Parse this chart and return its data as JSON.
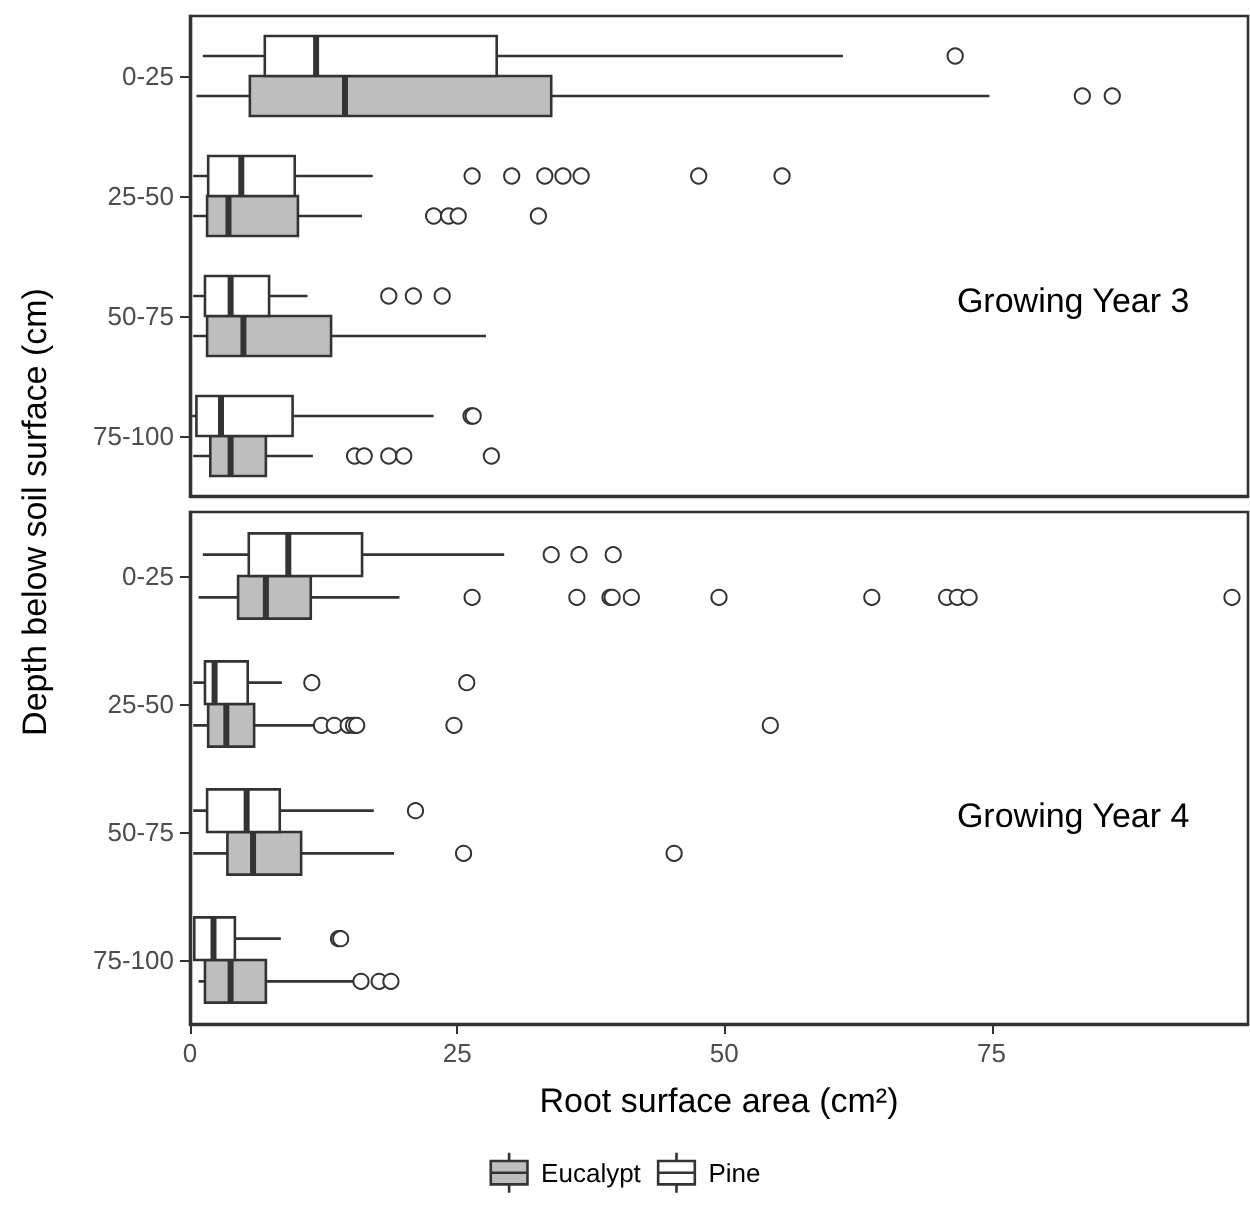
{
  "chart_data": [
    {
      "type": "box",
      "orientation": "horizontal",
      "ylabel": "Depth below soil surface (cm)",
      "annotations": [
        "Growing Year 3"
      ],
      "categories": [
        "0-25",
        "25-50",
        "50-75",
        "75-100"
      ],
      "xlim": [
        0,
        99
      ],
      "xticks": [
        0,
        25,
        50,
        75
      ],
      "tick_labels": "y",
      "series": [
        {
          "color": "#bebebe",
          "boxes": [
            {
              "low": 0.6,
              "q1": 5.6,
              "median": 14.5,
              "q3": 33.8,
              "high": 74.8,
              "outliers": [
                83.5,
                86.3
              ]
            },
            {
              "low": 0.3,
              "q1": 1.6,
              "median": 3.6,
              "q3": 10.1,
              "high": 16.1,
              "outliers": [
                22.8,
                24.2,
                25.1,
                32.6
              ]
            },
            {
              "low": 0.3,
              "q1": 1.6,
              "median": 5.0,
              "q3": 13.2,
              "high": 27.7
            },
            {
              "low": 0.3,
              "q1": 1.9,
              "median": 3.8,
              "q3": 7.1,
              "high": 11.5,
              "outliers": [
                15.4,
                16.3,
                18.6,
                20.0,
                28.2
              ]
            }
          ]
        },
        {
          "color": "#ffffff",
          "boxes": [
            {
              "low": 1.2,
              "q1": 7.0,
              "median": 11.8,
              "q3": 28.7,
              "high": 61.1,
              "outliers": [
                71.6
              ]
            },
            {
              "low": 0.3,
              "q1": 1.7,
              "median": 4.8,
              "q3": 9.8,
              "high": 17.1,
              "outliers": [
                26.4,
                30.1,
                33.2,
                34.9,
                36.6,
                47.6,
                55.4
              ]
            },
            {
              "low": 0.3,
              "q1": 1.4,
              "median": 3.8,
              "q3": 7.4,
              "high": 11.0,
              "outliers": [
                18.6,
                20.9,
                23.6
              ]
            },
            {
              "low": 0.2,
              "q1": 0.6,
              "median": 2.9,
              "q3": 9.6,
              "high": 22.8,
              "outliers": [
                26.3,
                26.5
              ]
            }
          ]
        }
      ]
    },
    {
      "type": "box",
      "orientation": "horizontal",
      "xlabel": "Root surface area (cm²)",
      "annotations": [
        "Growing Year 4"
      ],
      "categories": [
        "0-25",
        "25-50",
        "50-75",
        "75-100"
      ],
      "xlim": [
        0,
        99
      ],
      "xticks": [
        0,
        25,
        50,
        75
      ],
      "legend": "bottom",
      "series": [
        {
          "name": "Eucalypt",
          "color": "#bebebe",
          "boxes": [
            {
              "low": 0.8,
              "q1": 4.5,
              "median": 7.1,
              "q3": 11.3,
              "high": 19.6,
              "outliers": [
                26.4,
                36.2,
                39.3,
                39.5,
                41.3,
                49.5,
                63.8,
                70.8,
                71.8,
                72.9,
                97.5
              ]
            },
            {
              "low": 0.3,
              "q1": 1.7,
              "median": 3.4,
              "q3": 6.0,
              "high": 11.8,
              "outliers": [
                12.3,
                13.5,
                14.8,
                15.3,
                15.6,
                24.7,
                54.3
              ]
            },
            {
              "low": 0.3,
              "q1": 3.5,
              "median": 5.9,
              "q3": 10.4,
              "high": 19.1,
              "outliers": [
                25.6,
                45.3
              ]
            },
            {
              "low": 0.8,
              "q1": 1.4,
              "median": 3.8,
              "q3": 7.1,
              "high": 15.3,
              "outliers": [
                16.0,
                17.7,
                18.8
              ]
            }
          ]
        },
        {
          "name": "Pine",
          "color": "#ffffff",
          "boxes": [
            {
              "low": 1.2,
              "q1": 5.5,
              "median": 9.2,
              "q3": 16.1,
              "high": 29.4,
              "outliers": [
                33.8,
                36.4,
                39.6
              ]
            },
            {
              "low": 0.3,
              "q1": 1.4,
              "median": 2.3,
              "q3": 5.4,
              "high": 8.6,
              "outliers": [
                11.4,
                25.9
              ]
            },
            {
              "low": 0.3,
              "q1": 1.6,
              "median": 5.3,
              "q3": 8.4,
              "high": 17.2,
              "outliers": [
                21.1
              ]
            },
            {
              "low": 0.3,
              "q1": 0.4,
              "median": 2.2,
              "q3": 4.2,
              "high": 8.5,
              "outliers": [
                13.9,
                14.1
              ]
            }
          ]
        }
      ]
    }
  ]
}
